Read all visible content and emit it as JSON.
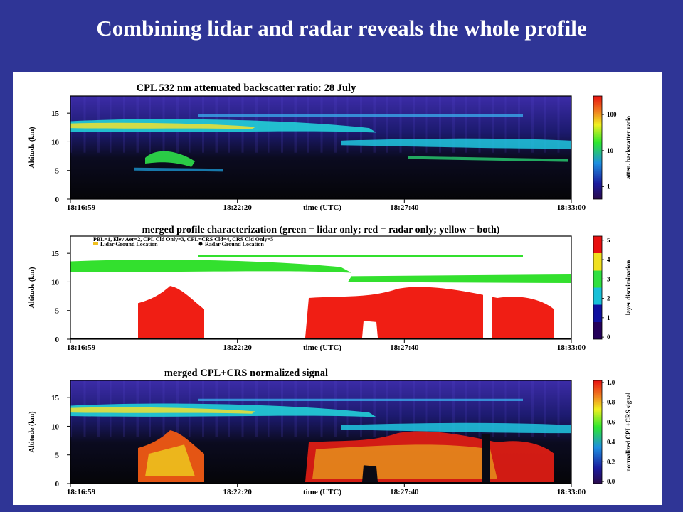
{
  "slide": {
    "title": "Combining lidar and radar reveals the whole profile"
  },
  "chart_data": [
    {
      "type": "heatmap",
      "title": "CPL 532 nm attenuated backscatter ratio:  28 July",
      "xlabel": "time (UTC)",
      "ylabel": "Altitude (km)",
      "x_ticks": [
        "18:16:59",
        "18:22:20",
        "18:27:40",
        "18:33:00"
      ],
      "y_ticks": [
        0,
        5,
        10,
        15
      ],
      "ylim": [
        0,
        18
      ],
      "colorbar": {
        "label": "atten. backscatter ratio",
        "ticks": [
          1,
          10,
          100
        ],
        "scale": "log"
      }
    },
    {
      "type": "heatmap",
      "title": "merged profile characterization (green = lidar only; red = radar only; yellow = both)",
      "legend": {
        "line1": "PBL=1, Elev Aer=2, CPL Cld Only=3, CPL+CRS Cld=4, CRS Cld Only=5",
        "items": [
          "Lidar Ground Location",
          "Radar Ground Location"
        ]
      },
      "xlabel": "time (UTC)",
      "ylabel": "Altitude (km)",
      "x_ticks": [
        "18:16:59",
        "18:22:20",
        "18:27:40",
        "18:33:00"
      ],
      "y_ticks": [
        0,
        5,
        10,
        15
      ],
      "ylim": [
        0,
        18
      ],
      "colorbar": {
        "label": "layer discrimination",
        "ticks": [
          0,
          1,
          2,
          3,
          4,
          5
        ]
      }
    },
    {
      "type": "heatmap",
      "title": "merged CPL+CRS normalized signal",
      "xlabel": "time (UTC)",
      "ylabel": "Altitude (km)",
      "x_ticks": [
        "18:16:59",
        "18:22:20",
        "18:27:40",
        "18:33:00"
      ],
      "y_ticks": [
        0,
        5,
        10,
        15
      ],
      "ylim": [
        0,
        18
      ],
      "colorbar": {
        "label": "normalized CPL+CRS signal",
        "ticks": [
          "0.0",
          "0.2",
          "0.4",
          "0.6",
          "0.8",
          "1.0"
        ]
      }
    }
  ]
}
